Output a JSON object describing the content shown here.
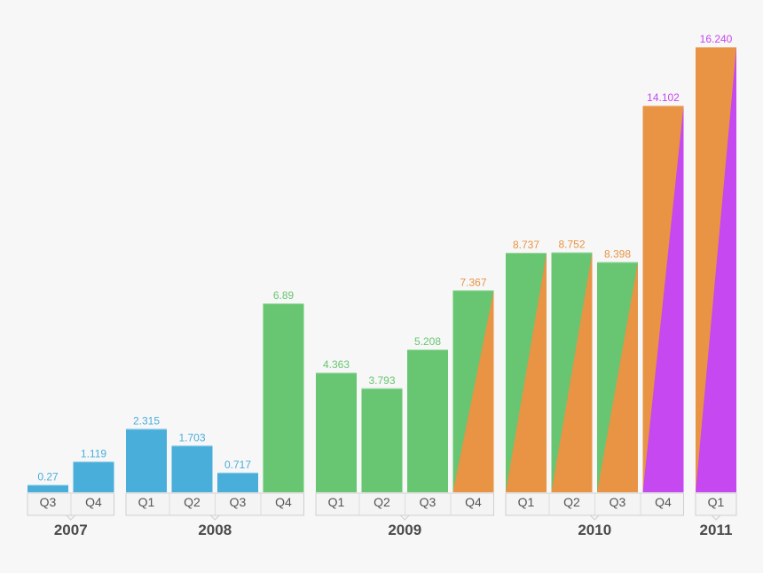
{
  "chart_data": {
    "type": "bar",
    "title": "",
    "xlabel": "",
    "ylabel": "",
    "ylim": [
      0,
      16.24
    ],
    "grid": false,
    "legend": "none",
    "colors": {
      "blue": "#4aaedb",
      "green": "#68c572",
      "orange": "#e89444",
      "purple": "#c548f0"
    },
    "groups": [
      {
        "year": "2007",
        "bars": [
          {
            "quarter": "Q3",
            "value": 0.27,
            "label": "0.27",
            "fill": "blue"
          },
          {
            "quarter": "Q4",
            "value": 1.119,
            "label": "1.119",
            "fill": "blue"
          }
        ]
      },
      {
        "year": "2008",
        "bars": [
          {
            "quarter": "Q1",
            "value": 2.315,
            "label": "2.315",
            "fill": "blue"
          },
          {
            "quarter": "Q2",
            "value": 1.703,
            "label": "1.703",
            "fill": "blue"
          },
          {
            "quarter": "Q3",
            "value": 0.717,
            "label": "0.717",
            "fill": "blue"
          },
          {
            "quarter": "Q4",
            "value": 6.89,
            "label": "6.89",
            "fill": "green"
          }
        ]
      },
      {
        "year": "2009",
        "bars": [
          {
            "quarter": "Q1",
            "value": 4.363,
            "label": "4.363",
            "fill": "green"
          },
          {
            "quarter": "Q2",
            "value": 3.793,
            "label": "3.793",
            "fill": "green"
          },
          {
            "quarter": "Q3",
            "value": 5.208,
            "label": "5.208",
            "fill": "green"
          },
          {
            "quarter": "Q4",
            "value": 7.367,
            "label": "7.367",
            "fill": "green",
            "fill2": "orange"
          }
        ]
      },
      {
        "year": "2010",
        "bars": [
          {
            "quarter": "Q1",
            "value": 8.737,
            "label": "8.737",
            "fill": "green",
            "fill2": "orange"
          },
          {
            "quarter": "Q2",
            "value": 8.752,
            "label": "8.752",
            "fill": "green",
            "fill2": "orange"
          },
          {
            "quarter": "Q3",
            "value": 8.398,
            "label": "8.398",
            "fill": "green",
            "fill2": "orange"
          },
          {
            "quarter": "Q4",
            "value": 14.102,
            "label": "14.102",
            "fill": "orange",
            "fill2": "purple"
          }
        ]
      },
      {
        "year": "2011",
        "bars": [
          {
            "quarter": "Q1",
            "value": 16.24,
            "label": "16.240",
            "fill": "orange",
            "fill2": "purple"
          }
        ]
      }
    ]
  }
}
